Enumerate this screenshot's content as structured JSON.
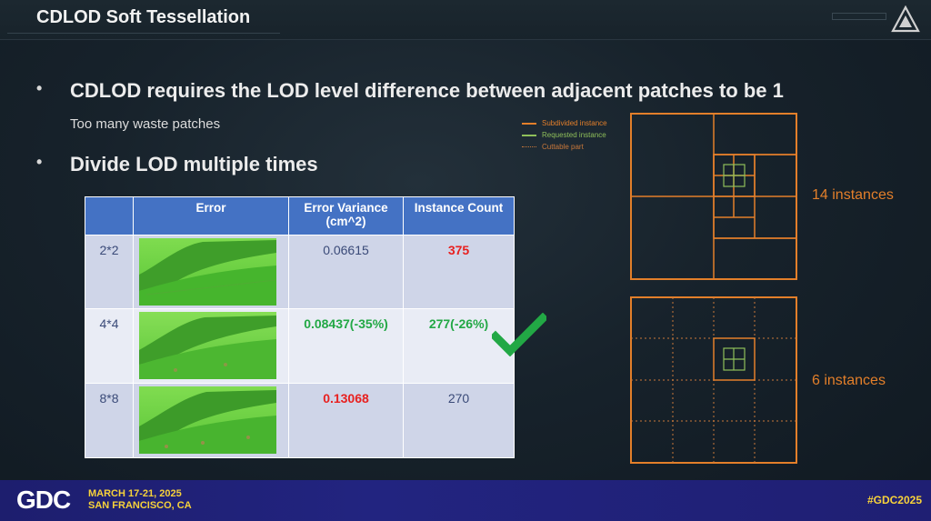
{
  "slide": {
    "title": "CDLOD Soft Tessellation",
    "bullets": [
      "CDLOD requires the LOD level difference between adjacent patches to be 1",
      "Divide LOD multiple times"
    ],
    "bullet_symbol": "•",
    "sub_text": "Too many waste patches"
  },
  "table": {
    "headers": [
      "",
      "Error",
      "Error Variance (cm^2)",
      "Instance Count"
    ],
    "rows": [
      {
        "label": "2*2",
        "error_variance": "0.06615",
        "instance_count": "375",
        "variance_color": "default",
        "count_color": "red"
      },
      {
        "label": "4*4",
        "error_variance": "0.08437(-35%)",
        "instance_count": "277(-26%)",
        "variance_color": "green",
        "count_color": "green"
      },
      {
        "label": "8*8",
        "error_variance": "0.13068",
        "instance_count": "270",
        "variance_color": "red",
        "count_color": "default"
      }
    ]
  },
  "legend": {
    "items": [
      {
        "label": "Subdivided instance",
        "color": "#e37f2a",
        "style": "solid"
      },
      {
        "label": "Requested instance",
        "color": "#8fbf5a",
        "style": "solid"
      },
      {
        "label": "Cuttable part",
        "color": "#c9783a",
        "style": "dotted"
      }
    ]
  },
  "diagrams": [
    {
      "label": "14 instances"
    },
    {
      "label": "6 instances"
    }
  ],
  "footer": {
    "logo": "GDC",
    "dates": "MARCH 17-21, 2025",
    "location": "SAN FRANCISCO, CA",
    "hashtag": "#GDC2025"
  },
  "colors": {
    "accent_orange": "#e37f2a",
    "requested_green": "#8fbf5a",
    "table_header": "#4472c4",
    "check_green": "#22a845",
    "footer_bg": "#222480",
    "footer_yellow": "#f7d23a"
  }
}
